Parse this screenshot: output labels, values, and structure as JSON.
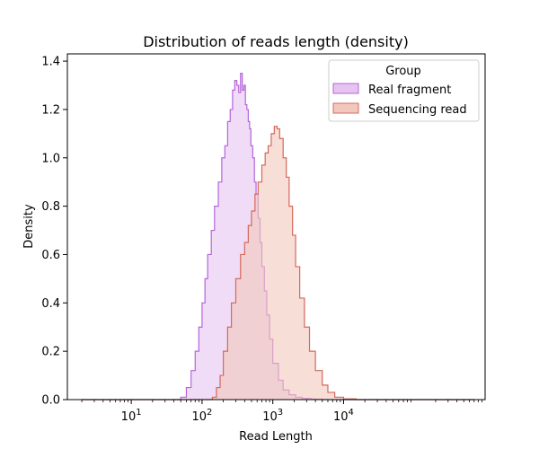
{
  "chart_data": {
    "type": "area",
    "title": "Distribution of reads length (density)",
    "xlabel": "Read Length",
    "ylabel": "Density",
    "xscale": "log",
    "xlim": [
      1.25,
      1000000
    ],
    "ylim": [
      0,
      1.43
    ],
    "x_ticks": [
      {
        "value": 10,
        "label": "10",
        "exp": "1"
      },
      {
        "value": 100,
        "label": "10",
        "exp": "2"
      },
      {
        "value": 1000,
        "label": "10",
        "exp": "3"
      },
      {
        "value": 10000,
        "label": "10",
        "exp": "4"
      }
    ],
    "y_ticks": [
      0.0,
      0.2,
      0.4,
      0.6,
      0.8,
      1.0,
      1.2,
      1.4
    ],
    "legend": {
      "title": "Group",
      "position": "top-right"
    },
    "series": [
      {
        "name": "Real fragment",
        "color": "#b565d9",
        "fill": "#e6c4f0",
        "x": [
          2,
          40,
          50,
          60,
          70,
          80,
          90,
          100,
          110,
          120,
          135,
          150,
          170,
          190,
          210,
          230,
          250,
          270,
          290,
          310,
          330,
          350,
          370,
          390,
          410,
          430,
          450,
          470,
          490,
          520,
          550,
          580,
          620,
          660,
          700,
          760,
          820,
          900,
          1000,
          1200,
          1400,
          1700,
          2100,
          2600,
          3500,
          5000,
          700000
        ],
        "values": [
          0,
          0,
          0.01,
          0.05,
          0.12,
          0.2,
          0.3,
          0.4,
          0.5,
          0.6,
          0.7,
          0.8,
          0.9,
          1.0,
          1.05,
          1.15,
          1.2,
          1.28,
          1.32,
          1.3,
          1.27,
          1.35,
          1.28,
          1.3,
          1.22,
          1.2,
          1.15,
          1.12,
          1.05,
          1.0,
          0.9,
          0.85,
          0.75,
          0.65,
          0.55,
          0.45,
          0.35,
          0.25,
          0.15,
          0.08,
          0.04,
          0.02,
          0.01,
          0.005,
          0.002,
          0,
          0
        ]
      },
      {
        "name": "Sequencing read",
        "color": "#d4695a",
        "fill": "#f2c8bd",
        "x": [
          2,
          100,
          140,
          160,
          180,
          200,
          230,
          260,
          300,
          350,
          400,
          450,
          500,
          560,
          620,
          700,
          780,
          860,
          950,
          1050,
          1150,
          1250,
          1400,
          1550,
          1700,
          1900,
          2100,
          2400,
          2800,
          3300,
          4000,
          5000,
          6000,
          7500,
          10000,
          15000,
          700000
        ],
        "values": [
          0,
          0,
          0.01,
          0.05,
          0.1,
          0.2,
          0.3,
          0.4,
          0.5,
          0.6,
          0.65,
          0.72,
          0.78,
          0.85,
          0.9,
          0.97,
          1.02,
          1.05,
          1.1,
          1.13,
          1.12,
          1.08,
          1.0,
          0.92,
          0.8,
          0.68,
          0.55,
          0.42,
          0.3,
          0.2,
          0.12,
          0.06,
          0.03,
          0.01,
          0.003,
          0,
          0
        ]
      }
    ]
  }
}
